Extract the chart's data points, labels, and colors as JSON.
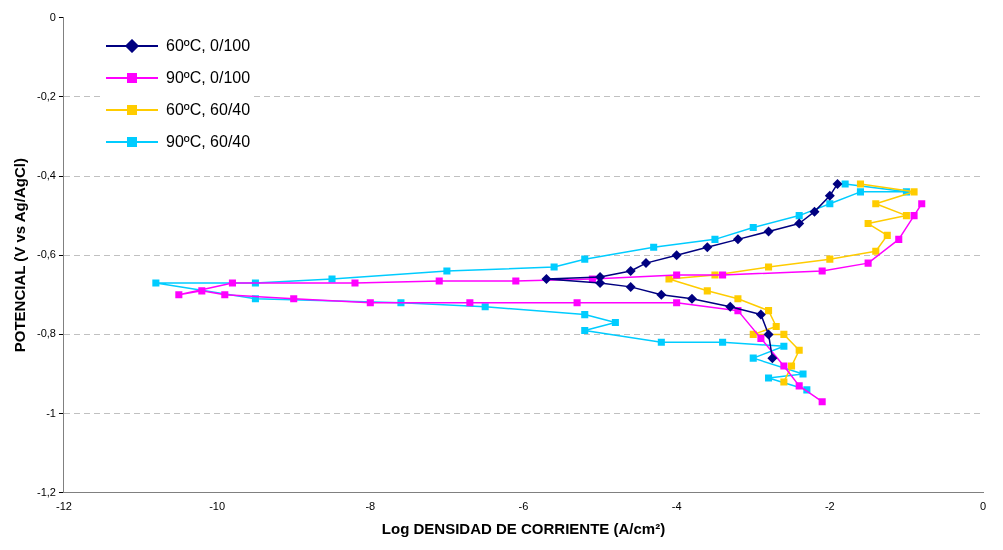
{
  "chart_data": {
    "type": "line",
    "xlabel": "Log DENSIDAD DE CORRIENTE (A/cm²)",
    "ylabel": "POTENCIAL (V vs Ag/AgCl)",
    "xlim": [
      -12,
      0
    ],
    "xticks": [
      -12,
      -10,
      -8,
      -6,
      -4,
      -2,
      0
    ],
    "ylim": [
      -1.2,
      0
    ],
    "yticks": [
      {
        "value": -1.2,
        "label": "-1,2"
      },
      -1,
      {
        "value": -0.8,
        "label": "-0,8"
      },
      {
        "value": -0.6,
        "label": "-0,6"
      },
      {
        "value": -0.4,
        "label": "-0,4"
      },
      {
        "value": -0.2,
        "label": "-0,2"
      },
      0
    ],
    "grid": "y",
    "legend": "top left",
    "line_style": "solid",
    "series": [
      {
        "name": "60ºC, 0/100",
        "color": "#000080",
        "marker": "diamond",
        "x": [
          -2.75,
          -2.8,
          -2.9,
          -3.3,
          -3.8,
          -4.2,
          -4.6,
          -5.0,
          -5.7,
          -5.0,
          -4.6,
          -4.4,
          -4.0,
          -3.6,
          -3.2,
          -2.8,
          -2.4,
          -2.2,
          -2.0,
          -1.9
        ],
        "values": [
          -0.86,
          -0.8,
          -0.75,
          -0.73,
          -0.71,
          -0.7,
          -0.68,
          -0.67,
          -0.66,
          -0.655,
          -0.64,
          -0.62,
          -0.6,
          -0.58,
          -0.56,
          -0.54,
          -0.52,
          -0.49,
          -0.45,
          -0.42
        ]
      },
      {
        "name": "90ºC, 0/100",
        "color": "#ff00ff",
        "marker": "square",
        "x": [
          -2.1,
          -2.4,
          -2.6,
          -2.9,
          -3.2,
          -4.0,
          -5.3,
          -6.7,
          -8.0,
          -9.0,
          -9.9,
          -10.2,
          -10.5,
          -9.8,
          -8.2,
          -7.1,
          -6.1,
          -5.1,
          -4.0,
          -3.4,
          -2.1,
          -1.5,
          -1.1,
          -0.9,
          -0.8
        ],
        "values": [
          -0.97,
          -0.93,
          -0.88,
          -0.81,
          -0.74,
          -0.72,
          -0.72,
          -0.72,
          -0.72,
          -0.71,
          -0.7,
          -0.69,
          -0.7,
          -0.67,
          -0.67,
          -0.665,
          -0.665,
          -0.66,
          -0.65,
          -0.65,
          -0.64,
          -0.62,
          -0.56,
          -0.5,
          -0.47
        ]
      },
      {
        "name": "60ºC, 60/40",
        "color": "#ffcc00",
        "marker": "square",
        "x": [
          -2.6,
          -2.5,
          -2.4,
          -2.6,
          -3.0,
          -2.7,
          -2.8,
          -3.2,
          -3.6,
          -4.1,
          -3.5,
          -2.8,
          -2.0,
          -1.4,
          -1.25,
          -1.5,
          -1.0,
          -1.4,
          -0.9,
          -1.6
        ],
        "values": [
          -0.92,
          -0.88,
          -0.84,
          -0.8,
          -0.8,
          -0.78,
          -0.74,
          -0.71,
          -0.69,
          -0.66,
          -0.65,
          -0.63,
          -0.61,
          -0.59,
          -0.55,
          -0.52,
          -0.5,
          -0.47,
          -0.44,
          -0.42
        ]
      },
      {
        "name": "90ºC, 60/40",
        "color": "#00ccff",
        "marker": "square",
        "x": [
          -2.3,
          -2.8,
          -2.35,
          -3.0,
          -2.6,
          -3.4,
          -4.2,
          -5.2,
          -4.8,
          -5.2,
          -6.5,
          -7.6,
          -9.5,
          -10.8,
          -9.5,
          -8.5,
          -7.0,
          -5.6,
          -5.2,
          -4.3,
          -3.5,
          -3.0,
          -2.4,
          -2.0,
          -1.6,
          -1.0,
          -1.8
        ],
        "values": [
          -0.94,
          -0.91,
          -0.9,
          -0.86,
          -0.83,
          -0.82,
          -0.82,
          -0.79,
          -0.77,
          -0.75,
          -0.73,
          -0.72,
          -0.71,
          -0.67,
          -0.67,
          -0.66,
          -0.64,
          -0.63,
          -0.61,
          -0.58,
          -0.56,
          -0.53,
          -0.5,
          -0.47,
          -0.44,
          -0.44,
          -0.42
        ]
      }
    ]
  }
}
